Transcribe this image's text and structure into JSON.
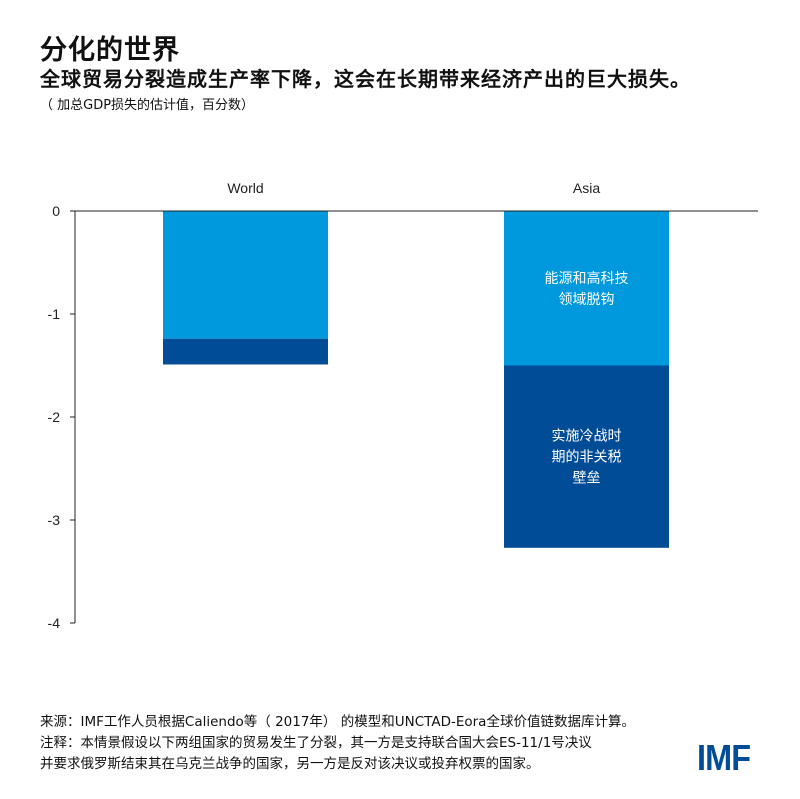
{
  "title": "分化的世界",
  "subtitle": "全球贸易分裂造成生产率下降，这会在长期带来经济产出的巨大损失。",
  "note": "（ 加总GDP损失的估计值，百分数）",
  "colors": {
    "light": "#0099DD",
    "dark": "#004C97",
    "logo": "#004C97"
  },
  "chart_data": {
    "type": "bar",
    "stacked": true,
    "categories": [
      "World",
      "Asia"
    ],
    "series": [
      {
        "name": "能源和高科技领域脱钩",
        "values": [
          -1.24,
          -1.5
        ],
        "color": "#0099DD"
      },
      {
        "name": "实施冷战时期的非关税壁垒",
        "values": [
          -0.25,
          -1.77
        ],
        "color": "#004C97"
      }
    ],
    "annotations": [
      {
        "category": "Asia",
        "series": 0,
        "lines": [
          "能源和高科技",
          "领域脱钩"
        ]
      },
      {
        "category": "Asia",
        "series": 1,
        "lines": [
          "实施冷战时",
          "期的非关税",
          "壁垒"
        ]
      }
    ],
    "yticks": [
      "0",
      "-1",
      "-2",
      "-3",
      "-4"
    ],
    "ylim": [
      -4,
      0
    ],
    "xlabel": "",
    "ylabel": "",
    "grid": false,
    "category_labels_position": "top"
  },
  "footer": {
    "source": "来源：IMF工作人员根据Caliendo等（ 2017年） 的模型和UNCTAD-Eora全球价值链数据库计算。",
    "note1": "注释：本情景假设以下两组国家的贸易发生了分裂，其一方是支持联合国大会ES-11/1号决议",
    "note2": "并要求俄罗斯结束其在乌克兰战争的国家，另一方是反对该决议或投弃权票的国家。"
  },
  "logo": "IMF"
}
